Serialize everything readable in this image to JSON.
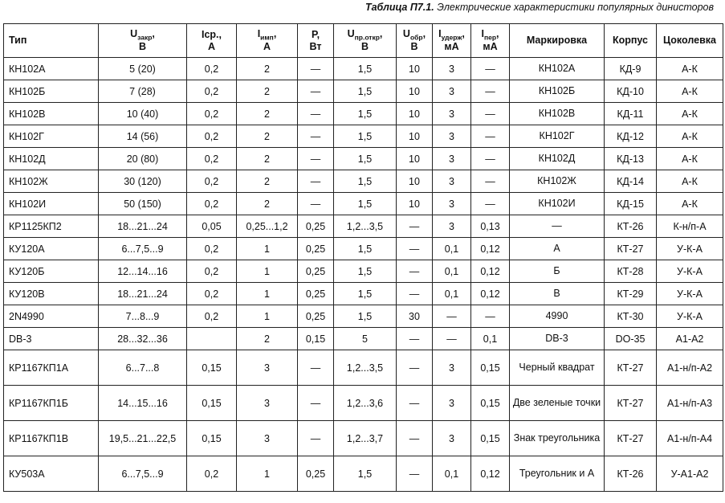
{
  "caption": {
    "label": "Таблица П7.1.",
    "text": "Электрические характеристики популярных динисторов"
  },
  "headers": [
    {
      "main": "Тип"
    },
    {
      "main": "U",
      "sub": "закр",
      "suffix": ",",
      "line2": "В"
    },
    {
      "main": "Iср.,",
      "line2": "А"
    },
    {
      "main": "I",
      "sub": "имп",
      "suffix": ",",
      "line2": "А"
    },
    {
      "main": "Р,",
      "line2": "Вт"
    },
    {
      "main": "U",
      "sub": "пр.откр",
      "suffix": ",",
      "line2": "В"
    },
    {
      "main": "U",
      "sub": "обр",
      "suffix": ",",
      "line2": "В"
    },
    {
      "main": "I",
      "sub": "удерж",
      "suffix": ",",
      "line2": "мА"
    },
    {
      "main": "I",
      "sub": "пер",
      "suffix": ",",
      "line2": "мА"
    },
    {
      "main": "Маркировка"
    },
    {
      "main": "Корпус"
    },
    {
      "main": "Цоколевка"
    }
  ],
  "rows": [
    [
      "КН102А",
      "5 (20)",
      "0,2",
      "2",
      "—",
      "1,5",
      "10",
      "3",
      "—",
      "КН102А",
      "КД-9",
      "А-К"
    ],
    [
      "КН102Б",
      "7 (28)",
      "0,2",
      "2",
      "—",
      "1,5",
      "10",
      "3",
      "—",
      "КН102Б",
      "КД-10",
      "А-К"
    ],
    [
      "КН102В",
      "10 (40)",
      "0,2",
      "2",
      "—",
      "1,5",
      "10",
      "3",
      "—",
      "КН102В",
      "КД-11",
      "А-К"
    ],
    [
      "КН102Г",
      "14 (56)",
      "0,2",
      "2",
      "—",
      "1,5",
      "10",
      "3",
      "—",
      "КН102Г",
      "КД-12",
      "А-К"
    ],
    [
      "КН102Д",
      "20 (80)",
      "0,2",
      "2",
      "—",
      "1,5",
      "10",
      "3",
      "—",
      "КН102Д",
      "КД-13",
      "А-К"
    ],
    [
      "КН102Ж",
      "30 (120)",
      "0,2",
      "2",
      "—",
      "1,5",
      "10",
      "3",
      "—",
      "КН102Ж",
      "КД-14",
      "А-К"
    ],
    [
      "КН102И",
      "50 (150)",
      "0,2",
      "2",
      "—",
      "1,5",
      "10",
      "3",
      "—",
      "КН102И",
      "КД-15",
      "А-К"
    ],
    [
      "КР1125КП2",
      "18...21...24",
      "0,05",
      "0,25...1,2",
      "0,25",
      "1,2...3,5",
      "—",
      "3",
      "0,13",
      "—",
      "КТ-26",
      "К-н/п-А"
    ],
    [
      "КУ120А",
      "6...7,5...9",
      "0,2",
      "1",
      "0,25",
      "1,5",
      "—",
      "0,1",
      "0,12",
      "А",
      "КТ-27",
      "У-К-А"
    ],
    [
      "КУ120Б",
      "12...14...16",
      "0,2",
      "1",
      "0,25",
      "1,5",
      "—",
      "0,1",
      "0,12",
      "Б",
      "КТ-28",
      "У-К-А"
    ],
    [
      "КУ120В",
      "18...21...24",
      "0,2",
      "1",
      "0,25",
      "1,5",
      "—",
      "0,1",
      "0,12",
      "В",
      "КТ-29",
      "У-К-А"
    ],
    [
      "2N4990",
      "7...8...9",
      "0,2",
      "1",
      "0,25",
      "1,5",
      "30",
      "—",
      "—",
      "4990",
      "КТ-30",
      "У-К-А"
    ],
    [
      "DB-3",
      "28...32...36",
      "",
      "2",
      "0,15",
      "5",
      "—",
      "—",
      "0,1",
      "DB-3",
      "DO-35",
      "А1-А2"
    ],
    [
      "КР1167КП1А",
      "6...7...8",
      "0,15",
      "3",
      "—",
      "1,2...3,5",
      "—",
      "3",
      "0,15",
      "Черный квадрат",
      "КТ-27",
      "А1-н/п-А2"
    ],
    [
      "КР1167КП1Б",
      "14...15...16",
      "0,15",
      "3",
      "—",
      "1,2...3,6",
      "—",
      "3",
      "0,15",
      "Две зеленые точки",
      "КТ-27",
      "А1-н/п-А3"
    ],
    [
      "КР1167КП1В",
      "19,5...21...22,5",
      "0,15",
      "3",
      "—",
      "1,2...3,7",
      "—",
      "3",
      "0,15",
      "Знак треугольника",
      "КТ-27",
      "А1-н/п-А4"
    ],
    [
      "КУ503А",
      "6...7,5...9",
      "0,2",
      "1",
      "0,25",
      "1,5",
      "—",
      "0,1",
      "0,12",
      "Треугольник и А",
      "КТ-26",
      "У-А1-А2"
    ]
  ],
  "tall_rows": [
    13,
    14,
    15,
    16
  ]
}
